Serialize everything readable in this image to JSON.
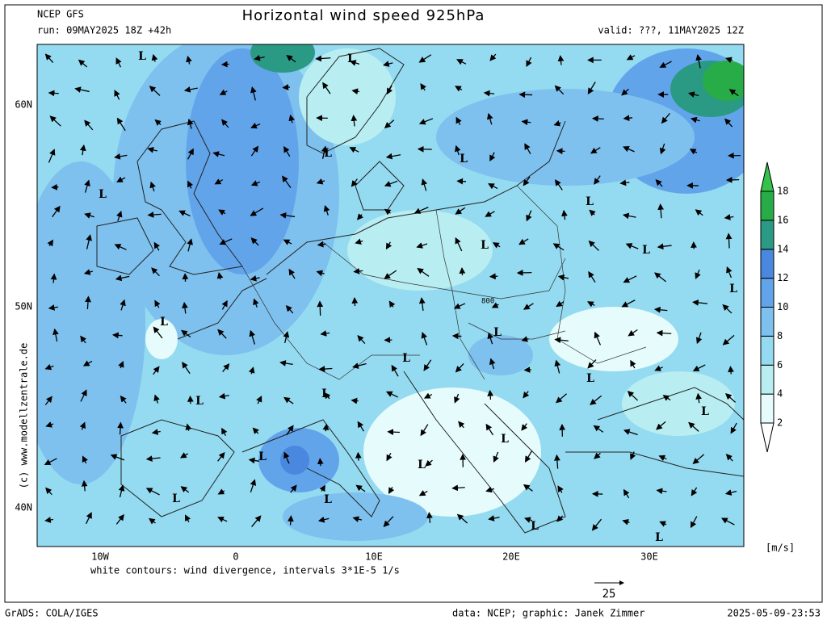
{
  "header": {
    "model": "NCEP GFS",
    "run": "run: 09MAY2025 18Z +42h",
    "title": "Horizontal wind speed 925hPa",
    "valid": "valid: ???, 11MAY2025 12Z"
  },
  "map": {
    "lat_labels": [
      "60N",
      "50N",
      "40N"
    ],
    "lon_labels": [
      "10W",
      "0",
      "10E",
      "20E",
      "30E"
    ],
    "lows": [
      "L",
      "L",
      "L",
      "L",
      "L",
      "L",
      "L",
      "L",
      "L",
      "L",
      "L",
      "L",
      "L",
      "L",
      "L",
      "L",
      "L",
      "L",
      "L",
      "L",
      "L",
      "L",
      "L"
    ],
    "contour_label": "800",
    "note": "white contours: wind divergence, intervals 3*1E-5 1/s",
    "vector_scale": "25",
    "copyright": "(c) www.modellzentrale.de"
  },
  "colorbar": {
    "levels": [
      2,
      4,
      6,
      8,
      10,
      12,
      14,
      16,
      18
    ],
    "colors": [
      "#ffffff",
      "#e6fbfb",
      "#b8eef2",
      "#94daf0",
      "#7ec0ee",
      "#62a4ea",
      "#4a88e0",
      "#2a9a84",
      "#28ac48",
      "#34c24a"
    ],
    "unit": "[m/s]"
  },
  "footer": {
    "software": "GrADS: COLA/IGES",
    "credit": "data: NCEP; graphic: Janek Zimmer",
    "timestamp": "2025-05-09-23:53"
  }
}
